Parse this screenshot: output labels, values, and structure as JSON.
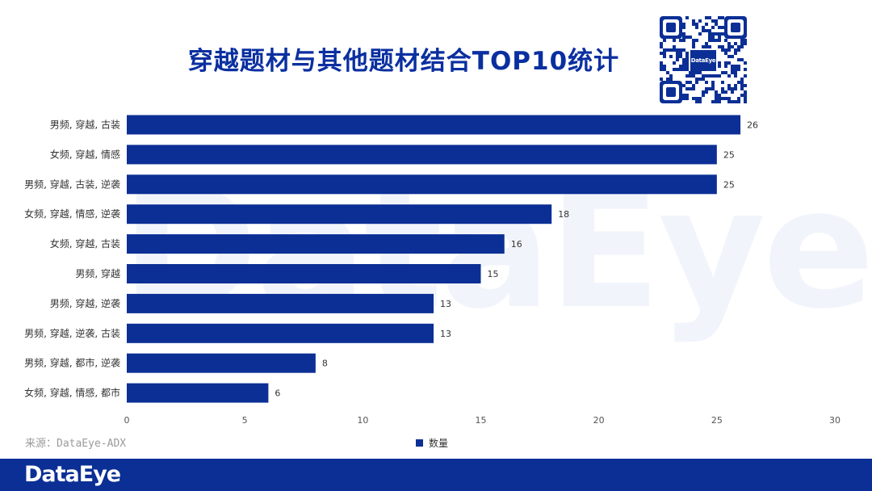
{
  "title": "穿越题材与其他题材结合TOP10统计",
  "watermark": "DataEye",
  "qr_label": "DataEye",
  "source": "来源：DataEye-ADX",
  "footer_logo": "DataEye",
  "colors": {
    "bar": "#0b2f95",
    "brand": "#0b2f95",
    "title": "#0a2fa0"
  },
  "chart_data": {
    "type": "bar",
    "orientation": "horizontal",
    "title": "穿越题材与其他题材结合TOP10统计",
    "categories": [
      "男频, 穿越, 古装",
      "女频, 穿越, 情感",
      "男频, 穿越, 古装, 逆袭",
      "女频, 穿越, 情感, 逆袭",
      "女频, 穿越, 古装",
      "男频, 穿越",
      "男频, 穿越, 逆袭",
      "男频, 穿越, 逆袭, 古装",
      "男频, 穿越, 都市, 逆袭",
      "女频, 穿越, 情感, 都市"
    ],
    "series": [
      {
        "name": "数量",
        "values": [
          26,
          25,
          25,
          18,
          16,
          15,
          13,
          13,
          8,
          6
        ]
      }
    ],
    "xlim": [
      0,
      30
    ],
    "xticks": [
      0,
      5,
      10,
      15,
      20,
      25,
      30
    ],
    "grid": false,
    "legend": "bottom-center"
  }
}
